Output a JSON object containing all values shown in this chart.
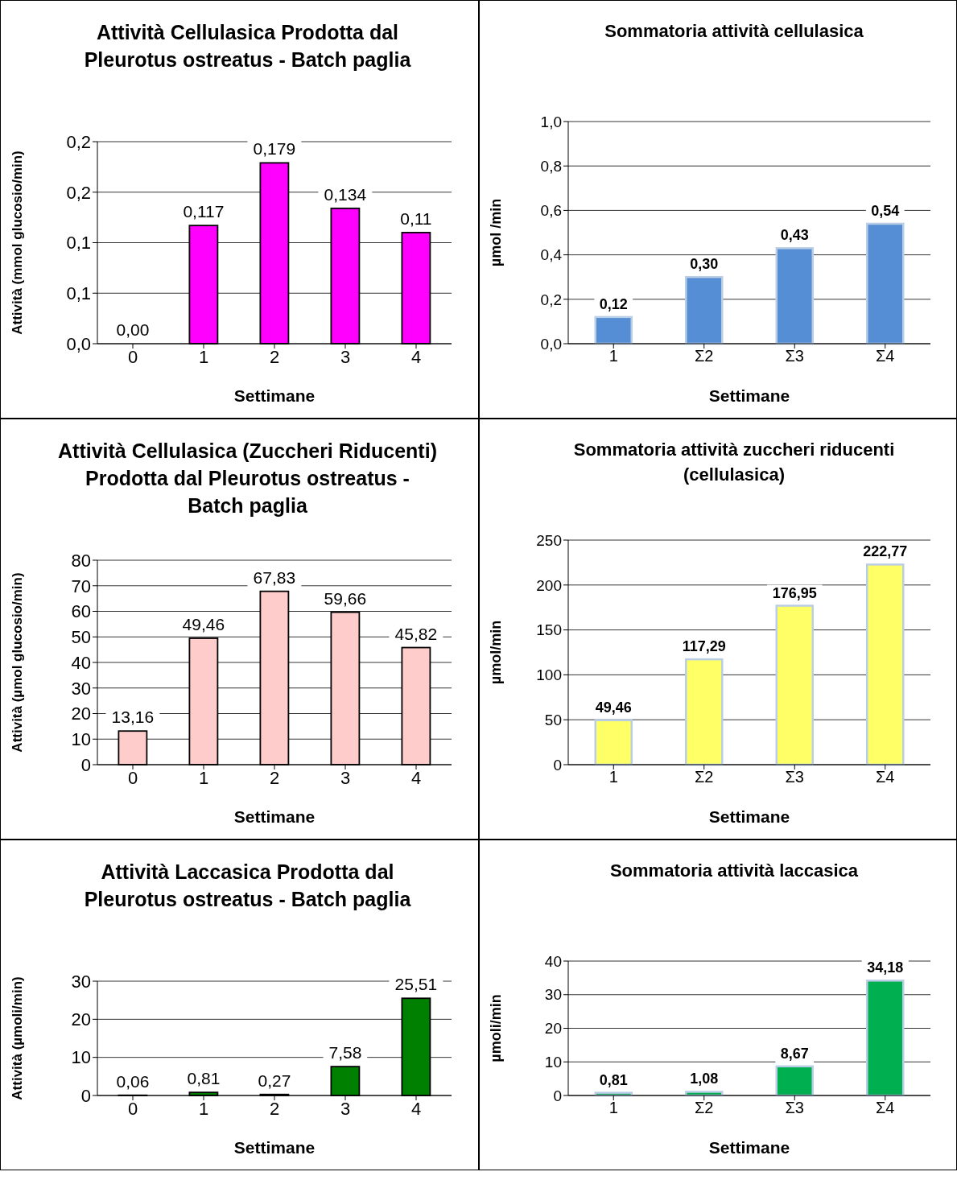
{
  "chart_data": [
    {
      "type": "bar",
      "title": "Attività Cellulasica Prodotta dal Pleurotus ostreatus - Batch paglia",
      "xlabel": "Settimane",
      "ylabel": "Attività (mmol glucosio/min)",
      "categories": [
        "0",
        "1",
        "2",
        "3",
        "4"
      ],
      "values": [
        0,
        0.117,
        0.179,
        0.134,
        0.11
      ],
      "value_labels": [
        "0,00",
        "0,117",
        "0,179",
        "0,134",
        "0,11"
      ],
      "color": "#ff00ff",
      "ylim": [
        0,
        0.2
      ],
      "yticks": [
        {
          "value": 0,
          "label": "0,0"
        },
        {
          "value": 0.05,
          "label": "0,1"
        },
        {
          "value": 0.1,
          "label": "0,1"
        },
        {
          "value": 0.15,
          "label": "0,2"
        },
        {
          "value": 0.2,
          "label": "0,2"
        }
      ],
      "grid": "y"
    },
    {
      "type": "bar",
      "title": "Sommatoria  attività cellulasica",
      "xlabel": "Settimane",
      "ylabel": "µmol /min",
      "categories": [
        "1",
        "Σ2",
        "Σ3",
        "Σ4"
      ],
      "values": [
        0.12,
        0.3,
        0.43,
        0.54
      ],
      "value_labels": [
        "0,12",
        "0,30",
        "0,43",
        "0,54"
      ],
      "color": "#558ed5",
      "ylim": [
        0,
        1.0
      ],
      "yticks": [
        {
          "value": 0,
          "label": "0,0"
        },
        {
          "value": 0.2,
          "label": "0,2"
        },
        {
          "value": 0.4,
          "label": "0,4"
        },
        {
          "value": 0.6,
          "label": "0,6"
        },
        {
          "value": 0.8,
          "label": "0,8"
        },
        {
          "value": 1.0,
          "label": "1,0"
        }
      ],
      "grid": "y"
    },
    {
      "type": "bar",
      "title": "Attività Cellulasica (Zuccheri Riducenti) Prodotta dal Pleurotus ostreatus - Batch paglia",
      "xlabel": "Settimane",
      "ylabel": "Attività (µmol glucosio/min)",
      "categories": [
        "0",
        "1",
        "2",
        "3",
        "4"
      ],
      "values": [
        13.16,
        49.46,
        67.83,
        59.66,
        45.82
      ],
      "value_labels": [
        "13,16",
        "49,46",
        "67,83",
        "59,66",
        "45,82"
      ],
      "color": "#ffcccc",
      "ylim": [
        0,
        80
      ],
      "yticks": [
        0,
        10,
        20,
        30,
        40,
        50,
        60,
        70,
        80
      ],
      "grid": "y"
    },
    {
      "type": "bar",
      "title": "Sommatoria  attività zuccheri riducenti (cellulasica)",
      "xlabel": "Settimane",
      "ylabel": "µmol/min",
      "categories": [
        "1",
        "Σ2",
        "Σ3",
        "Σ4"
      ],
      "values": [
        49.46,
        117.29,
        176.95,
        222.77
      ],
      "value_labels": [
        "49,46",
        "117,29",
        "176,95",
        "222,77"
      ],
      "color": "#ffff66",
      "ylim": [
        0,
        250
      ],
      "yticks": [
        0,
        50,
        100,
        150,
        200,
        250
      ],
      "grid": "y"
    },
    {
      "type": "bar",
      "title": "Attività Laccasica Prodotta dal Pleurotus ostreatus - Batch paglia",
      "xlabel": "Settimane",
      "ylabel": "Attività (µmoli/min)",
      "categories": [
        "0",
        "1",
        "2",
        "3",
        "4"
      ],
      "values": [
        0.06,
        0.81,
        0.27,
        7.58,
        25.51
      ],
      "value_labels": [
        "0,06",
        "0,81",
        "0,27",
        "7,58",
        "25,51"
      ],
      "color": "#008000",
      "ylim": [
        0,
        30
      ],
      "yticks": [
        0,
        10,
        20,
        30
      ],
      "grid": "y"
    },
    {
      "type": "bar",
      "title": "Sommatoria  attività laccasica",
      "xlabel": "Settimane",
      "ylabel": "µmoli/min",
      "categories": [
        "1",
        "Σ2",
        "Σ3",
        "Σ4"
      ],
      "values": [
        0.81,
        1.08,
        8.67,
        34.18
      ],
      "value_labels": [
        "0,81",
        "1,08",
        "8,67",
        "34,18"
      ],
      "color": "#00b050",
      "ylim": [
        0,
        40
      ],
      "yticks": [
        0,
        10,
        20,
        30,
        40
      ],
      "grid": "y"
    }
  ]
}
